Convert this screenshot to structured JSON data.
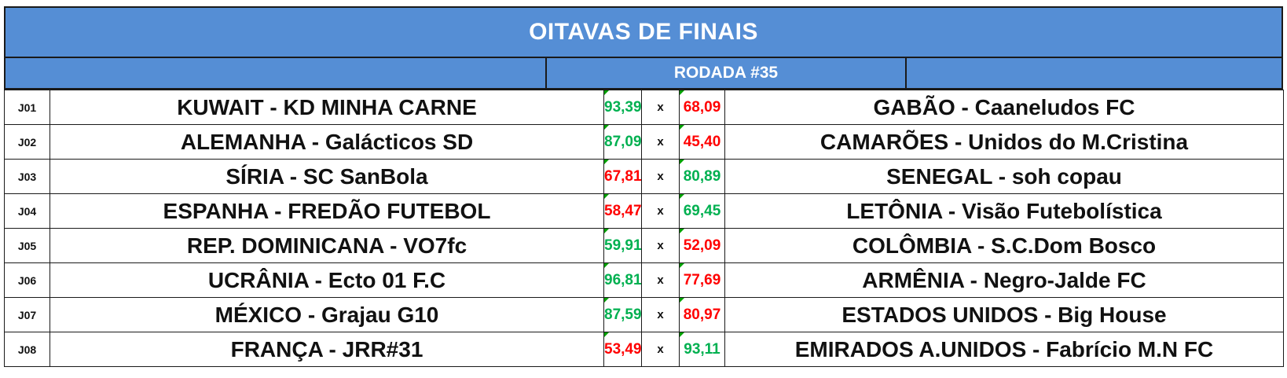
{
  "title": "OITAVAS DE FINAIS",
  "round": "RODADA #35",
  "separator": "x",
  "colors": {
    "header_bg": "#558ed5",
    "win": "#00b050",
    "lose": "#ff0000"
  },
  "matches": [
    {
      "code": "J01",
      "home": "KUWAIT - KD MINHA CARNE",
      "home_score": "93,39",
      "home_result": "win",
      "away_score": "68,09",
      "away_result": "lose",
      "away": "GABÃO -  Caaneludos FC"
    },
    {
      "code": "J02",
      "home": "ALEMANHA - Galácticos SD",
      "home_score": "87,09",
      "home_result": "win",
      "away_score": "45,40",
      "away_result": "lose",
      "away": "CAMARÕES - Unidos do M.Cristina"
    },
    {
      "code": "J03",
      "home": "SÍRIA - SC SanBola",
      "home_score": "67,81",
      "home_result": "lose",
      "away_score": "80,89",
      "away_result": "win",
      "away": "SENEGAL - soh copau"
    },
    {
      "code": "J04",
      "home": "ESPANHA - FREDÃO FUTEBOL",
      "home_score": "58,47",
      "home_result": "lose",
      "away_score": "69,45",
      "away_result": "win",
      "away": "LETÔNIA - Visão Futebolística"
    },
    {
      "code": "J05",
      "home": "REP. DOMINICANA - VO7fc",
      "home_score": "59,91",
      "home_result": "win",
      "away_score": "52,09",
      "away_result": "lose",
      "away": "COLÔMBIA - S.C.Dom Bosco"
    },
    {
      "code": "J06",
      "home": "UCRÂNIA - Ecto 01 F.C",
      "home_score": "96,81",
      "home_result": "win",
      "away_score": "77,69",
      "away_result": "lose",
      "away": "ARMÊNIA - Negro-Jalde FC"
    },
    {
      "code": "J07",
      "home": "MÉXICO - Grajau G10",
      "home_score": "87,59",
      "home_result": "win",
      "away_score": "80,97",
      "away_result": "lose",
      "away": "ESTADOS UNIDOS - Big House"
    },
    {
      "code": "J08",
      "home": "FRANÇA - JRR#31",
      "home_score": "53,49",
      "home_result": "lose",
      "away_score": "93,11",
      "away_result": "win",
      "away": "EMIRADOS A.UNIDOS - Fabrício M.N FC"
    }
  ]
}
